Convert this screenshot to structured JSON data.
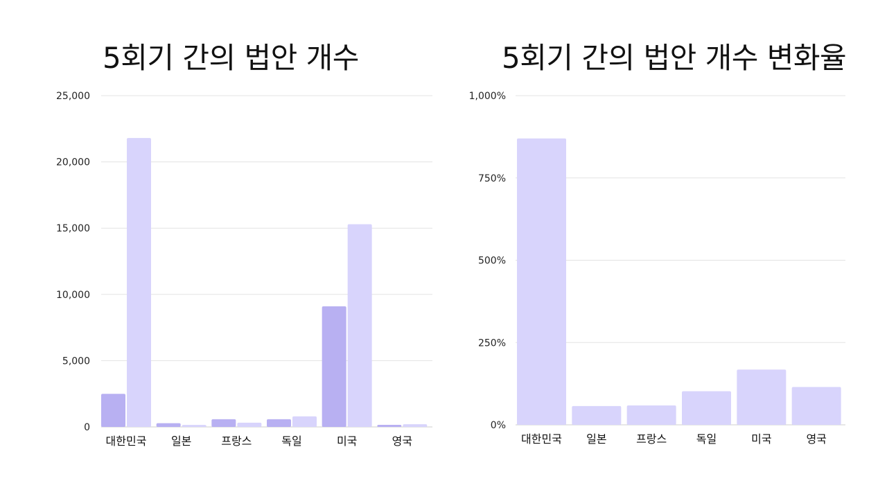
{
  "colors": {
    "primary": "#b8b0f2",
    "secondary": "#d8d4fc",
    "grid": "#e3e3e3",
    "baseline": "#cfcfcf"
  },
  "chart_data": [
    {
      "type": "bar",
      "title": "5회기 간의 법안 개수",
      "categories": [
        "대한민국",
        "일본",
        "프랑스",
        "독일",
        "미국",
        "영국"
      ],
      "series": [
        {
          "values": [
            2500,
            280,
            580,
            580,
            9100,
            160
          ]
        },
        {
          "values": [
            21800,
            150,
            320,
            800,
            15300,
            200
          ]
        }
      ],
      "yticks": [
        "0",
        "5,000",
        "10,000",
        "15,000",
        "20,000",
        "25,000"
      ],
      "ylim": [
        0,
        25000
      ],
      "grid": true,
      "legend": "none"
    },
    {
      "type": "bar",
      "title": "5회기 간의 법안 개수 변화율",
      "categories": [
        "대한민국",
        "일본",
        "프랑스",
        "독일",
        "미국",
        "영국"
      ],
      "series": [
        {
          "values": [
            870,
            57,
            59,
            102,
            168,
            115
          ]
        }
      ],
      "yticks": [
        "0%",
        "250%",
        "500%",
        "750%",
        "1,000%"
      ],
      "ylim": [
        0,
        1000
      ],
      "grid": true,
      "legend": "none"
    }
  ]
}
